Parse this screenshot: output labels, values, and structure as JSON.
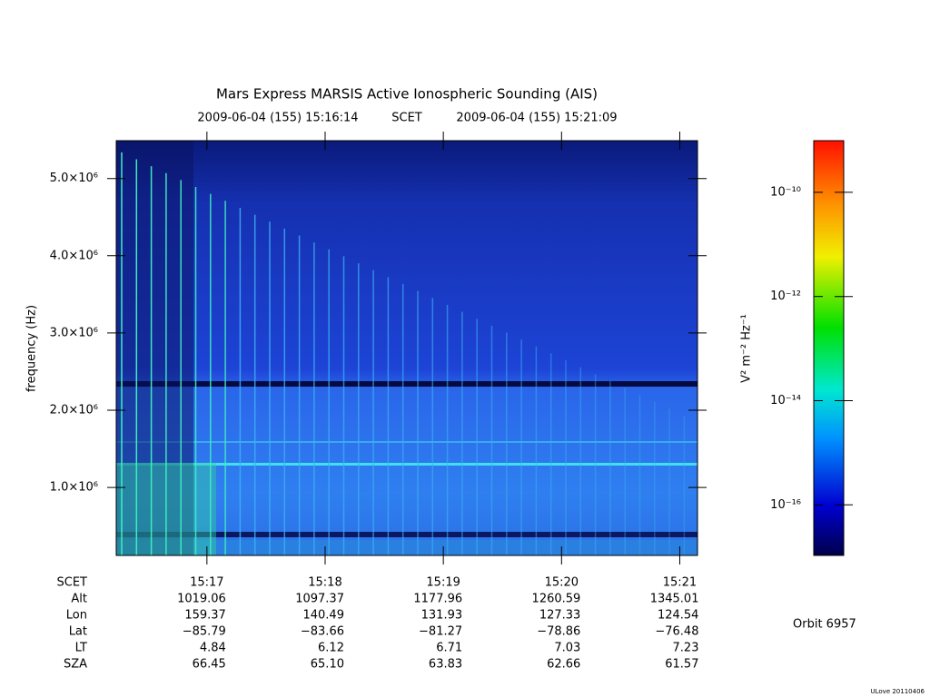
{
  "chart_data": {
    "type": "spectrogram",
    "title": "Mars Express MARSIS Active Ionospheric Sounding (AIS)",
    "subtitle": {
      "start": "2009-06-04 (155) 15:16:14",
      "label": "SCET",
      "end": "2009-06-04 (155) 15:21:09"
    },
    "y_label": "frequency (Hz)",
    "xlim": [
      16.233,
      21.15
    ],
    "xticks": [
      {
        "value": 17,
        "label": "15:17"
      },
      {
        "value": 18,
        "label": "15:18"
      },
      {
        "value": 19,
        "label": "15:19"
      },
      {
        "value": 20,
        "label": "15:20"
      },
      {
        "value": 21,
        "label": "15:21"
      }
    ],
    "ylim": [
      120000,
      5490000
    ],
    "yticks": [
      {
        "value": 1000000,
        "label": "1.0×10⁶"
      },
      {
        "value": 2000000,
        "label": "2.0×10⁶"
      },
      {
        "value": 3000000,
        "label": "3.0×10⁶"
      },
      {
        "value": 4000000,
        "label": "4.0×10⁶"
      },
      {
        "value": 5000000,
        "label": "5.0×10⁶"
      }
    ],
    "colorbar": {
      "label": "V² m⁻² Hz⁻¹",
      "scale": "log",
      "zlim": [
        1.07e-17,
        9.8e-10
      ],
      "ticks": [
        {
          "value": 1e-10,
          "label": "10⁻¹⁰"
        },
        {
          "value": 1e-12,
          "label": "10⁻¹²"
        },
        {
          "value": 1e-14,
          "label": "10⁻¹⁴"
        },
        {
          "value": 1e-16,
          "label": "10⁻¹⁶"
        }
      ]
    },
    "ephemeris": {
      "x_row_label": "SCET",
      "rows": [
        {
          "label": "Alt",
          "values": [
            "1019.06",
            "1097.37",
            "1177.96",
            "1260.59",
            "1345.01"
          ]
        },
        {
          "label": "Lon",
          "values": [
            "159.37",
            "140.49",
            "131.93",
            "127.33",
            "124.54"
          ]
        },
        {
          "label": "Lat",
          "values": [
            "−85.79",
            "−83.66",
            "−81.27",
            "−78.86",
            "−76.48"
          ]
        },
        {
          "label": "LT",
          "values": [
            "4.84",
            "6.12",
            "6.71",
            "7.03",
            "7.23"
          ]
        },
        {
          "label": "SZA",
          "values": [
            "66.45",
            "65.10",
            "63.83",
            "62.66",
            "61.57"
          ]
        }
      ]
    },
    "orbit": "Orbit 6957",
    "footer": "ULove 20110406"
  }
}
